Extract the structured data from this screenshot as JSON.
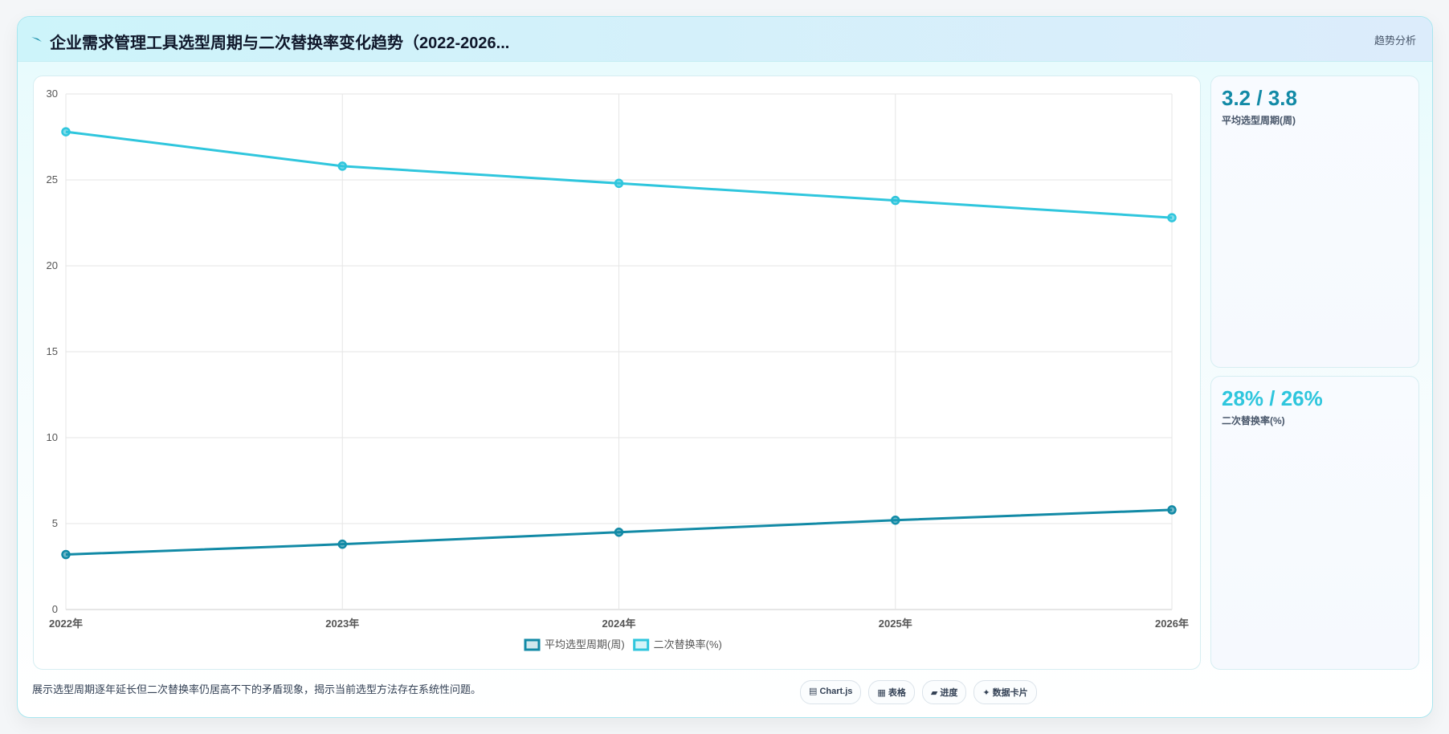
{
  "header": {
    "title": "企业需求管理工具选型周期与二次替换率变化趋势（2022-2026...",
    "tag": "趋势分析"
  },
  "chart_data": {
    "type": "line",
    "categories": [
      "2022年",
      "2023年",
      "2024年",
      "2025年",
      "2026年"
    ],
    "series": [
      {
        "name": "平均选型周期(周)",
        "color": "#128aa6",
        "values": [
          3.2,
          3.8,
          4.5,
          5.2,
          5.8
        ]
      },
      {
        "name": "二次替换率(%)",
        "color": "#2fc6dd",
        "values": [
          27.8,
          25.8,
          24.8,
          23.8,
          22.8
        ]
      }
    ],
    "ylim": [
      0,
      30
    ],
    "yticks": [
      0,
      5,
      10,
      15,
      20,
      25,
      30
    ],
    "grid": true,
    "legend": "bottom"
  },
  "stats": [
    {
      "value": "3.2 / 3.8",
      "label": "平均选型周期(周)",
      "color": "#128aa6"
    },
    {
      "value": "28% / 26%",
      "label": "二次替换率(%)",
      "color": "#2fc6dd"
    }
  ],
  "footer": {
    "note": "展示选型周期逐年延长但二次替换率仍居高不下的矛盾现象，揭示当前选型方法存在系统性问题。",
    "buttons": [
      "▤ Chart.js",
      "▦ 表格",
      "▰ 进度",
      "✦ 数据卡片"
    ]
  }
}
